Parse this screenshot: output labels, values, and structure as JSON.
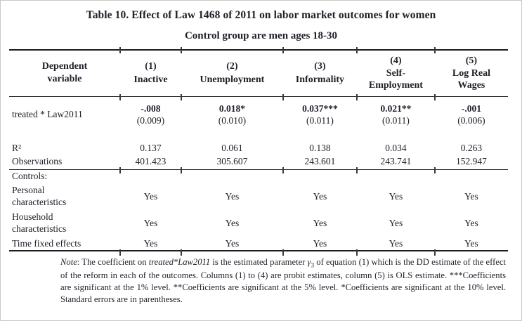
{
  "title": "Table 10. Effect of Law 1468 of 2011 on labor market outcomes for women",
  "subtitle": "Control group are men ages 18-30",
  "table": {
    "header": {
      "dep_label": "Dependent\nvariable",
      "columns": [
        {
          "num": "(1)",
          "label": "Inactive"
        },
        {
          "num": "(2)",
          "label": "Unemployment"
        },
        {
          "num": "(3)",
          "label": "Informality"
        },
        {
          "num": "(4)",
          "label": "Self-\nEmployment"
        },
        {
          "num": "(5)",
          "label": "Log Real\nWages"
        }
      ]
    },
    "treated_row": {
      "label": "treated * Law2011",
      "coefs": [
        "-.008",
        "0.018*",
        "0.037***",
        "0.021**",
        "-.001"
      ],
      "ses": [
        "(0.009)",
        "(0.010)",
        "(0.011)",
        "(0.011)",
        "(0.006)"
      ]
    },
    "r2_row": {
      "label": "R²",
      "values": [
        "0.137",
        "0.061",
        "0.138",
        "0.034",
        "0.263"
      ]
    },
    "obs_row": {
      "label": "Observations",
      "values": [
        "401.423",
        "305.607",
        "243.601",
        "243.741",
        "152.947"
      ]
    },
    "controls_label": "Controls:",
    "controls_rows": [
      {
        "label": "Personal\ncharacteristics",
        "values": [
          "Yes",
          "Yes",
          "Yes",
          "Yes",
          "Yes"
        ]
      },
      {
        "label": "Household\ncharacteristics",
        "values": [
          "Yes",
          "Yes",
          "Yes",
          "Yes",
          "Yes"
        ]
      },
      {
        "label": "Time fixed effects",
        "values": [
          "Yes",
          "Yes",
          "Yes",
          "Yes",
          "Yes"
        ]
      }
    ]
  },
  "note": {
    "label": "Note",
    "part1": ": The coefficient on ",
    "emphasis": "treated*Law2011",
    "part2": " is the estimated parameter ",
    "gamma": "γ",
    "gamma_sub": "3",
    "part3": " of equation (1) which is the DD estimate of the effect of the reform in each of the outcomes. Columns (1) to (4) are probit estimates, column (5) is OLS estimate. ***Coefficients are significant at the 1% level. **Coefficients are significant at the 5% level. *Coefficients are significant at the 10% level.  Standard errors are in parentheses."
  }
}
